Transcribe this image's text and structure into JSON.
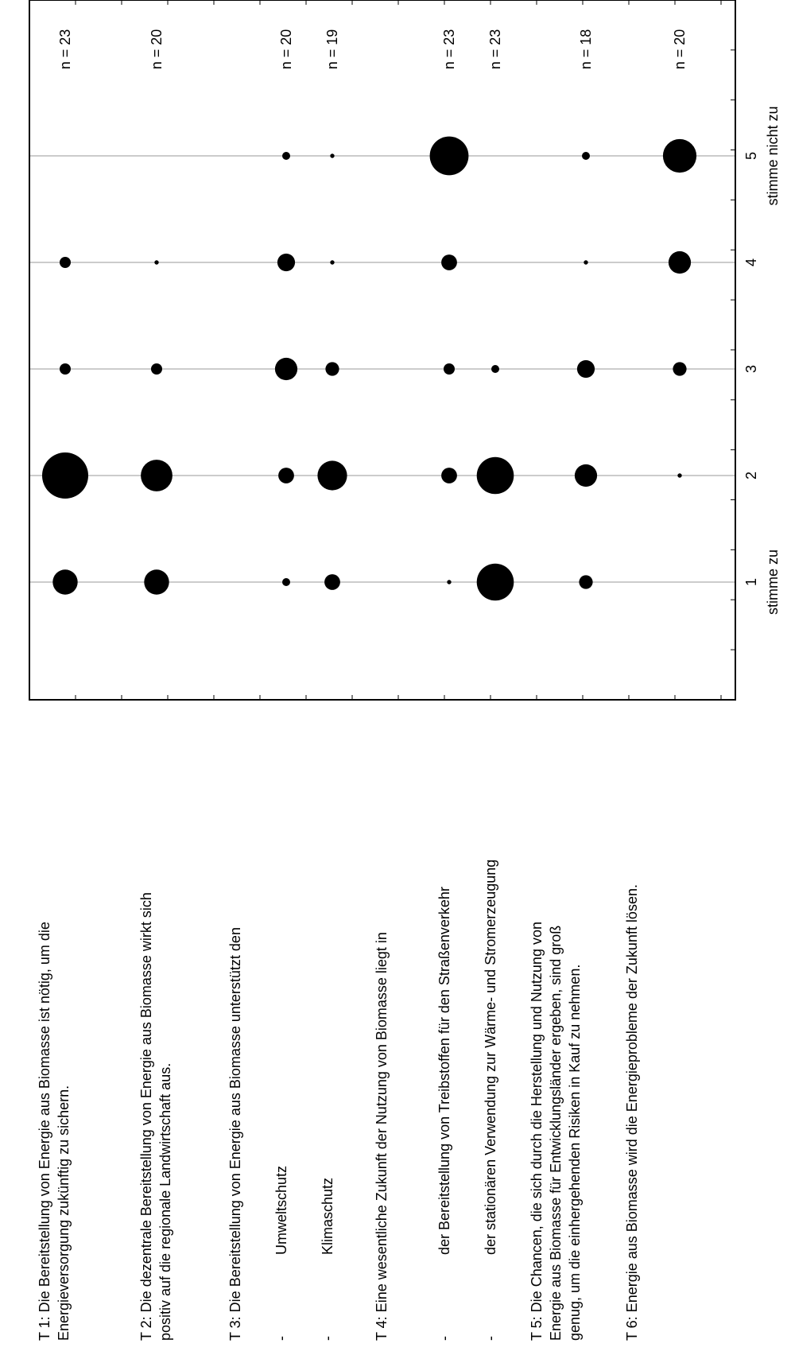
{
  "chart_data": {
    "type": "scatter",
    "subtype": "bubble",
    "orientation": "rotated-90-ccw",
    "scale_label_agree": "stimme zu",
    "scale_label_disagree": "stimme nicht zu",
    "scale_ticks": [
      "1",
      "2",
      "3",
      "4",
      "5"
    ],
    "scale_range": [
      0.0,
      6.0
    ],
    "grid": "reference lines at each scale tick",
    "statement_rows": [
      {
        "lines": [
          "T 1: Die Bereitstellung von Energie aus Biomasse ist nötig, um die",
          "Energieversorgung zukünftig zu sichern."
        ]
      },
      {
        "lines": [
          "T 2: Die dezentrale Bereitstellung von Energie aus Biomasse wirkt sich",
          "positiv auf die regionale Landwirtschaft aus."
        ]
      },
      {
        "lines": [
          "T 3: Die Bereitstellung von Energie aus Biomasse unterstützt den"
        ]
      },
      {
        "lines": [
          "-",
          "Umweltschutz"
        ]
      },
      {
        "lines": [
          "-",
          "Klimaschutz"
        ]
      },
      {
        "lines": [
          "T 4: Eine wesentliche Zukunft der Nutzung von Biomasse liegt in"
        ]
      },
      {
        "lines": [
          "-",
          "der Bereitstellung von Treibstoffen für den Straßenverkehr"
        ]
      },
      {
        "lines": [
          "-",
          "der stationären Verwendung zur Wärme- und Stromerzeugung"
        ]
      },
      {
        "lines": [
          "T 5: Die Chancen, die sich durch die Herstellung und Nutzung von",
          "Energie aus Biomasse für Entwicklungsländer ergeben, sind groß",
          "genug, um die einhergehenden Risiken in Kauf zu nehmen."
        ]
      },
      {
        "lines": [
          "T 6: Energie aus Biomasse wird die Energieprobleme der Zukunft lösen."
        ]
      }
    ],
    "series": [
      {
        "id": "T1",
        "n_label": "n = 23",
        "counts": [
          5,
          17,
          1,
          1,
          0
        ]
      },
      {
        "id": "T2",
        "n_label": "n = 20",
        "counts": [
          5,
          8,
          1,
          0.15,
          0
        ]
      },
      {
        "id": "T3-Umweltschutz",
        "n_label": "n = 20",
        "counts": [
          0.5,
          2,
          4,
          2.5,
          0.5
        ]
      },
      {
        "id": "T3-Klimaschutz",
        "n_label": "n = 19",
        "counts": [
          2,
          7,
          1.5,
          0.15,
          0.15
        ]
      },
      {
        "id": "T4-Strassenverkehr",
        "n_label": "n = 23",
        "counts": [
          0.15,
          2,
          1,
          2,
          12
        ]
      },
      {
        "id": "T4-Waerme-Strom",
        "n_label": "n = 23",
        "counts": [
          11,
          11,
          0.5,
          0,
          0
        ]
      },
      {
        "id": "T5",
        "n_label": "n = 18",
        "counts": [
          1.5,
          4,
          2.5,
          0.15,
          0.5
        ]
      },
      {
        "id": "T6",
        "n_label": "n = 20",
        "counts": [
          0,
          0.15,
          1.5,
          4,
          9
        ]
      }
    ]
  }
}
